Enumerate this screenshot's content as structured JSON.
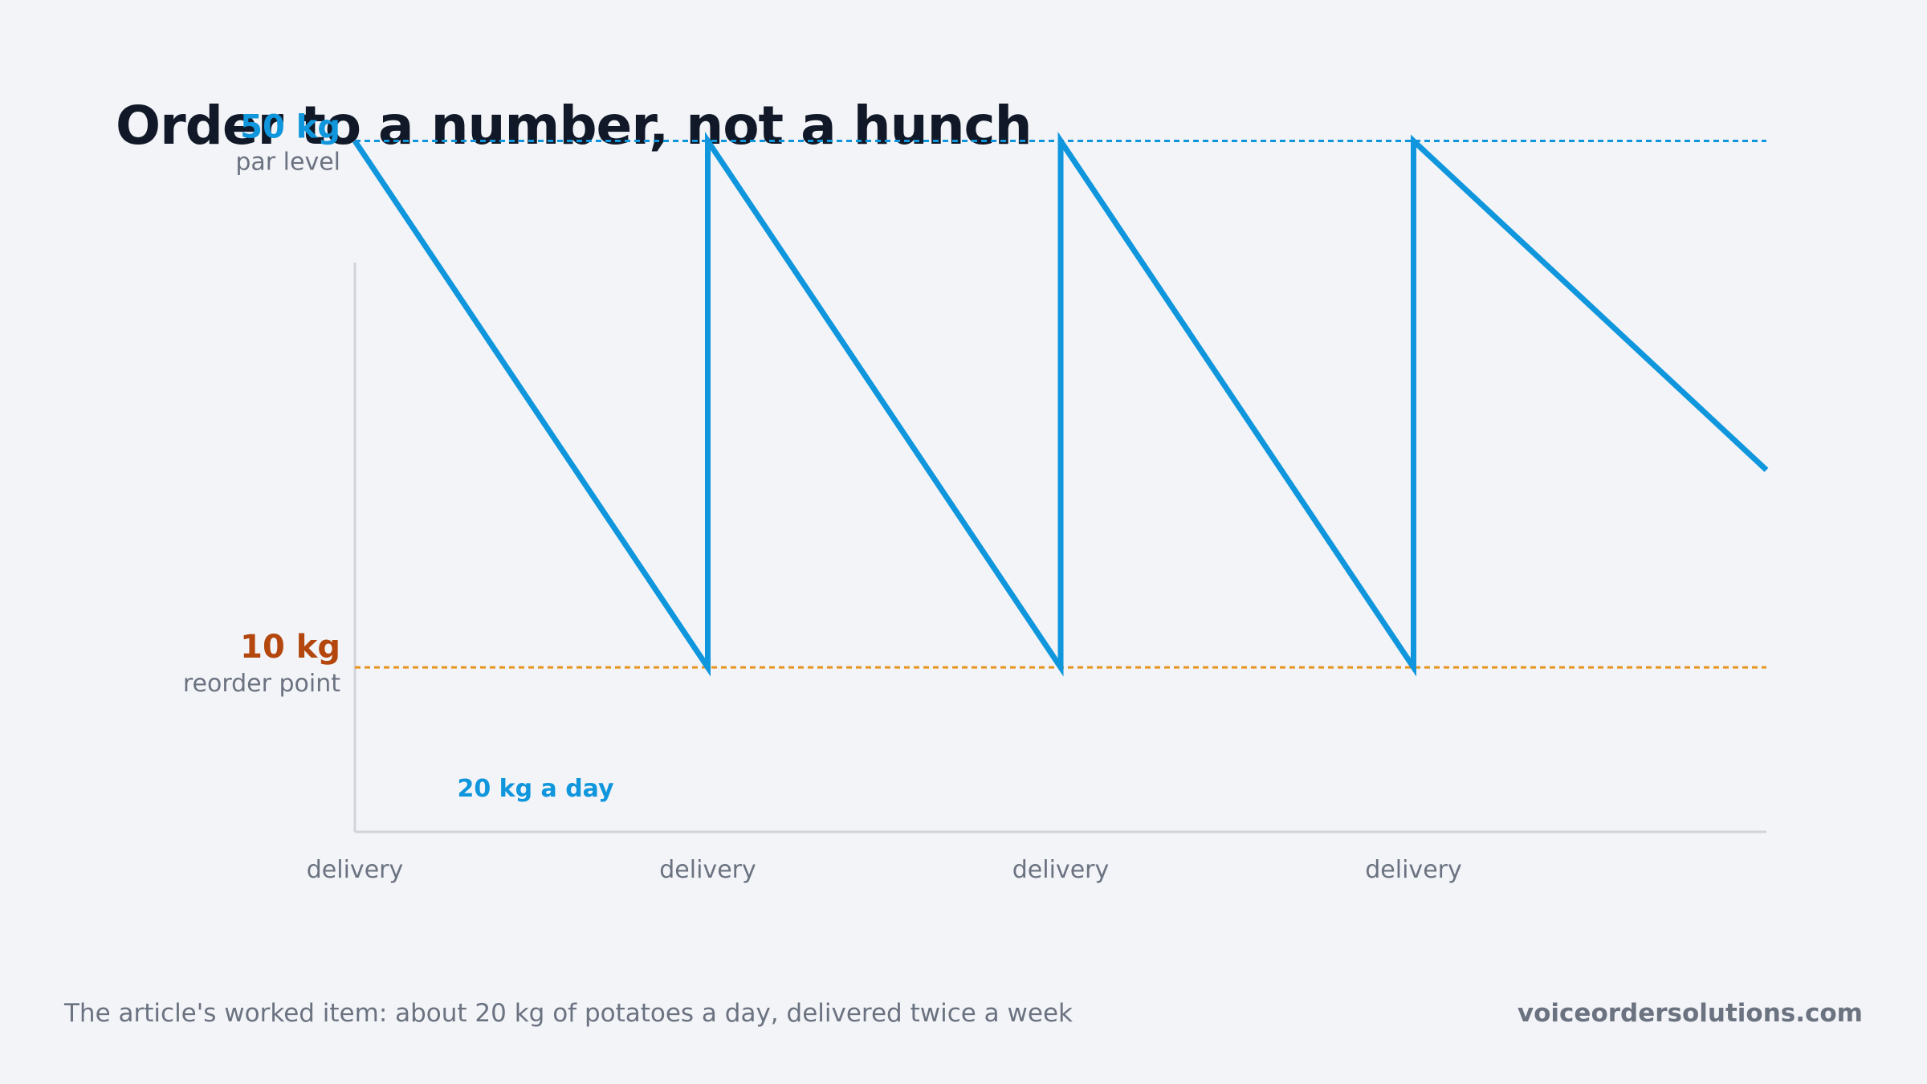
{
  "title": "Order to a number, not a hunch",
  "footer": {
    "note": "The article's worked item: about 20 kg of potatoes a day, delivered twice a week",
    "site": "voiceordersolutions.com"
  },
  "colors": {
    "stock_line": "#0f96dc",
    "par_line": "#0f96dc",
    "reorder_line": "#e8951f",
    "par_text": "#0f96dc",
    "reorder_text": "#b3470e",
    "axis": "#d1d5db"
  },
  "chart_data": {
    "type": "line",
    "title": "Order to a number, not a hunch",
    "xlabel": "",
    "ylabel": "",
    "xlim": [
      0,
      4
    ],
    "ylim": [
      -2.5,
      54
    ],
    "grid": false,
    "legend": "none",
    "series": [
      {
        "x": [
          0,
          1,
          1,
          2,
          2,
          3,
          3,
          4
        ],
        "y": [
          50,
          10,
          50,
          10,
          50,
          10,
          50,
          25
        ]
      }
    ],
    "x_ticks": [
      {
        "x": 0,
        "label": "delivery"
      },
      {
        "x": 1,
        "label": "delivery"
      },
      {
        "x": 2,
        "label": "delivery"
      },
      {
        "x": 3,
        "label": "delivery"
      }
    ],
    "reference_lines": [
      {
        "y": 50,
        "value_label": "50 kg",
        "label": "par level"
      },
      {
        "y": 10,
        "value_label": "10 kg",
        "label": "reorder point"
      }
    ],
    "annotations": [
      {
        "text": "20 kg a day"
      }
    ]
  }
}
